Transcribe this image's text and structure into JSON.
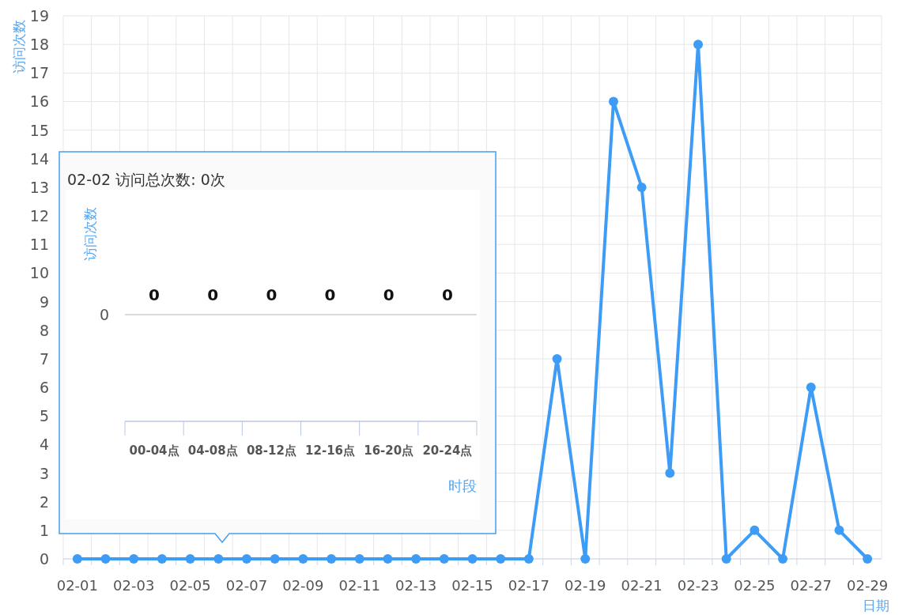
{
  "chart_data": [
    {
      "type": "line",
      "ylabel": "访问次数",
      "xlabel": "日期",
      "categories": [
        "02-01",
        null,
        "02-03",
        null,
        "02-05",
        null,
        "02-07",
        null,
        "02-09",
        null,
        "02-11",
        null,
        "02-13",
        null,
        "02-15",
        null,
        "02-17",
        null,
        "02-19",
        null,
        "02-21",
        null,
        "02-23",
        null,
        "02-25",
        null,
        "02-27",
        null,
        "02-29"
      ],
      "values": [
        0,
        0,
        0,
        0,
        0,
        0,
        0,
        0,
        0,
        0,
        0,
        0,
        0,
        0,
        0,
        0,
        0,
        7,
        0,
        16,
        13,
        3,
        18,
        0,
        1,
        0,
        6,
        1,
        0
      ],
      "color": "#3d9cf5",
      "ylim": [
        0,
        19
      ],
      "yticks": [
        0,
        1,
        2,
        3,
        4,
        5,
        6,
        7,
        8,
        9,
        10,
        11,
        12,
        13,
        14,
        15,
        16,
        17,
        18,
        19
      ],
      "grid": true,
      "marker": "circle",
      "line_style": "solid"
    },
    {
      "type": "other",
      "title": "02-02 访问总次数: 0次",
      "ylabel": "访问次数",
      "xlabel": "时段",
      "categories": [
        "00-04点",
        "04-08点",
        "08-12点",
        "12-16点",
        "16-20点",
        "20-24点"
      ],
      "values": [
        0,
        0,
        0,
        0,
        0,
        0
      ],
      "color": "#3d9cf5",
      "data_labels": true,
      "annotations": [
        "0"
      ]
    }
  ]
}
